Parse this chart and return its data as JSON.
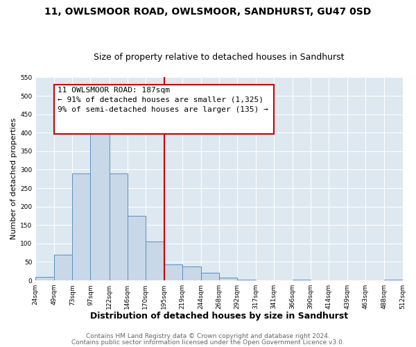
{
  "title": "11, OWLSMOOR ROAD, OWLSMOOR, SANDHURST, GU47 0SD",
  "subtitle": "Size of property relative to detached houses in Sandhurst",
  "xlabel": "Distribution of detached houses by size in Sandhurst",
  "ylabel": "Number of detached properties",
  "bin_edges": [
    24,
    49,
    73,
    97,
    122,
    146,
    170,
    195,
    219,
    244,
    268,
    292,
    317,
    341,
    366,
    390,
    414,
    439,
    463,
    488,
    512
  ],
  "bin_heights": [
    10,
    70,
    290,
    425,
    290,
    175,
    105,
    43,
    38,
    20,
    7,
    2,
    0,
    0,
    2,
    0,
    0,
    0,
    0,
    3
  ],
  "bar_color": "#c8d8e8",
  "bar_edge_color": "#5a8fc0",
  "vline_x": 195,
  "vline_color": "#cc0000",
  "annotation_line1": "11 OWLSMOOR ROAD: 187sqm",
  "annotation_line2": "← 91% of detached houses are smaller (1,325)",
  "annotation_line3": "9% of semi-detached houses are larger (135) →",
  "box_edge_color": "#cc0000",
  "ylim": [
    0,
    550
  ],
  "yticks": [
    0,
    50,
    100,
    150,
    200,
    250,
    300,
    350,
    400,
    450,
    500,
    550
  ],
  "tick_labels": [
    "24sqm",
    "49sqm",
    "73sqm",
    "97sqm",
    "122sqm",
    "146sqm",
    "170sqm",
    "195sqm",
    "219sqm",
    "244sqm",
    "268sqm",
    "292sqm",
    "317sqm",
    "341sqm",
    "366sqm",
    "390sqm",
    "414sqm",
    "439sqm",
    "463sqm",
    "488sqm",
    "512sqm"
  ],
  "footer1": "Contains HM Land Registry data © Crown copyright and database right 2024.",
  "footer2": "Contains public sector information licensed under the Open Government Licence v3.0.",
  "fig_bg_color": "#ffffff",
  "plot_bg_color": "#dde8f0",
  "title_fontsize": 10,
  "subtitle_fontsize": 9,
  "xlabel_fontsize": 9,
  "ylabel_fontsize": 8,
  "annotation_fontsize": 8,
  "footer_fontsize": 6.5,
  "tick_fontsize": 6.5
}
